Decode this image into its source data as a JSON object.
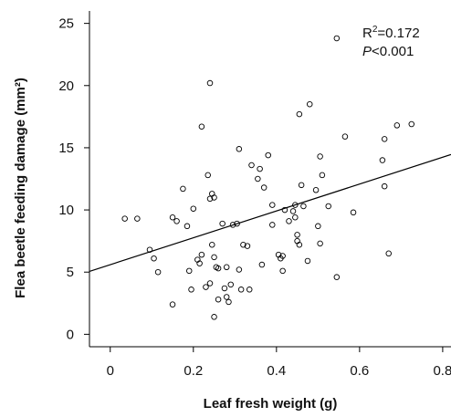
{
  "chart_data": {
    "type": "scatter",
    "xlabel": "Leaf fresh weight (g)",
    "ylabel": "Flea beetle feeding damage (mm²)",
    "xlim": [
      -0.05,
      0.82
    ],
    "ylim": [
      -1,
      26
    ],
    "xticks": [
      "0",
      "0.2",
      "0.4",
      "0.6",
      "0.8"
    ],
    "xtick_values": [
      0,
      0.2,
      0.4,
      0.6,
      0.8
    ],
    "yticks": [
      "0",
      "5",
      "10",
      "15",
      "20",
      "25"
    ],
    "ytick_values": [
      0,
      5,
      10,
      15,
      20,
      25
    ],
    "grid": false,
    "annotations": {
      "r2_prefix": "R",
      "r2_sup": "2",
      "r2_value": "=0.172",
      "p_italic": "P",
      "p_value": "<0.001"
    },
    "fit_line": {
      "intercept": 5.6,
      "slope": 10.8
    },
    "points": [
      {
        "x": 0.035,
        "y": 9.3
      },
      {
        "x": 0.065,
        "y": 9.3
      },
      {
        "x": 0.095,
        "y": 6.8
      },
      {
        "x": 0.105,
        "y": 6.1
      },
      {
        "x": 0.115,
        "y": 5.0
      },
      {
        "x": 0.15,
        "y": 9.4
      },
      {
        "x": 0.16,
        "y": 9.1
      },
      {
        "x": 0.15,
        "y": 2.4
      },
      {
        "x": 0.175,
        "y": 11.7
      },
      {
        "x": 0.185,
        "y": 8.7
      },
      {
        "x": 0.19,
        "y": 5.1
      },
      {
        "x": 0.195,
        "y": 3.6
      },
      {
        "x": 0.2,
        "y": 10.1
      },
      {
        "x": 0.21,
        "y": 6.0
      },
      {
        "x": 0.215,
        "y": 5.7
      },
      {
        "x": 0.22,
        "y": 6.4
      },
      {
        "x": 0.22,
        "y": 16.7
      },
      {
        "x": 0.23,
        "y": 3.8
      },
      {
        "x": 0.235,
        "y": 12.8
      },
      {
        "x": 0.24,
        "y": 20.2
      },
      {
        "x": 0.24,
        "y": 10.9
      },
      {
        "x": 0.245,
        "y": 11.3
      },
      {
        "x": 0.245,
        "y": 7.2
      },
      {
        "x": 0.24,
        "y": 4.1
      },
      {
        "x": 0.25,
        "y": 6.2
      },
      {
        "x": 0.25,
        "y": 11.0
      },
      {
        "x": 0.25,
        "y": 1.4
      },
      {
        "x": 0.255,
        "y": 5.4
      },
      {
        "x": 0.26,
        "y": 2.8
      },
      {
        "x": 0.26,
        "y": 5.3
      },
      {
        "x": 0.27,
        "y": 8.9
      },
      {
        "x": 0.275,
        "y": 3.7
      },
      {
        "x": 0.28,
        "y": 3.0
      },
      {
        "x": 0.28,
        "y": 5.4
      },
      {
        "x": 0.285,
        "y": 2.6
      },
      {
        "x": 0.29,
        "y": 4.0
      },
      {
        "x": 0.295,
        "y": 8.8
      },
      {
        "x": 0.305,
        "y": 8.9
      },
      {
        "x": 0.31,
        "y": 5.2
      },
      {
        "x": 0.31,
        "y": 14.9
      },
      {
        "x": 0.315,
        "y": 3.6
      },
      {
        "x": 0.32,
        "y": 7.2
      },
      {
        "x": 0.33,
        "y": 7.1
      },
      {
        "x": 0.335,
        "y": 3.6
      },
      {
        "x": 0.34,
        "y": 13.6
      },
      {
        "x": 0.355,
        "y": 12.5
      },
      {
        "x": 0.36,
        "y": 13.3
      },
      {
        "x": 0.365,
        "y": 5.6
      },
      {
        "x": 0.37,
        "y": 11.8
      },
      {
        "x": 0.38,
        "y": 14.4
      },
      {
        "x": 0.39,
        "y": 8.8
      },
      {
        "x": 0.39,
        "y": 10.4
      },
      {
        "x": 0.405,
        "y": 6.4
      },
      {
        "x": 0.41,
        "y": 6.1
      },
      {
        "x": 0.415,
        "y": 6.3
      },
      {
        "x": 0.415,
        "y": 5.1
      },
      {
        "x": 0.42,
        "y": 10.0
      },
      {
        "x": 0.43,
        "y": 9.1
      },
      {
        "x": 0.44,
        "y": 9.9
      },
      {
        "x": 0.445,
        "y": 10.4
      },
      {
        "x": 0.445,
        "y": 9.4
      },
      {
        "x": 0.45,
        "y": 8.0
      },
      {
        "x": 0.45,
        "y": 7.5
      },
      {
        "x": 0.455,
        "y": 7.2
      },
      {
        "x": 0.455,
        "y": 17.7
      },
      {
        "x": 0.46,
        "y": 12.0
      },
      {
        "x": 0.465,
        "y": 10.3
      },
      {
        "x": 0.475,
        "y": 5.9
      },
      {
        "x": 0.48,
        "y": 18.5
      },
      {
        "x": 0.495,
        "y": 11.6
      },
      {
        "x": 0.5,
        "y": 8.7
      },
      {
        "x": 0.505,
        "y": 7.3
      },
      {
        "x": 0.505,
        "y": 14.3
      },
      {
        "x": 0.51,
        "y": 12.8
      },
      {
        "x": 0.525,
        "y": 10.3
      },
      {
        "x": 0.545,
        "y": 4.6
      },
      {
        "x": 0.545,
        "y": 23.8
      },
      {
        "x": 0.565,
        "y": 15.9
      },
      {
        "x": 0.585,
        "y": 9.8
      },
      {
        "x": 0.655,
        "y": 14.0
      },
      {
        "x": 0.66,
        "y": 11.9
      },
      {
        "x": 0.66,
        "y": 15.7
      },
      {
        "x": 0.67,
        "y": 6.5
      },
      {
        "x": 0.69,
        "y": 16.8
      },
      {
        "x": 0.725,
        "y": 16.9
      }
    ]
  }
}
